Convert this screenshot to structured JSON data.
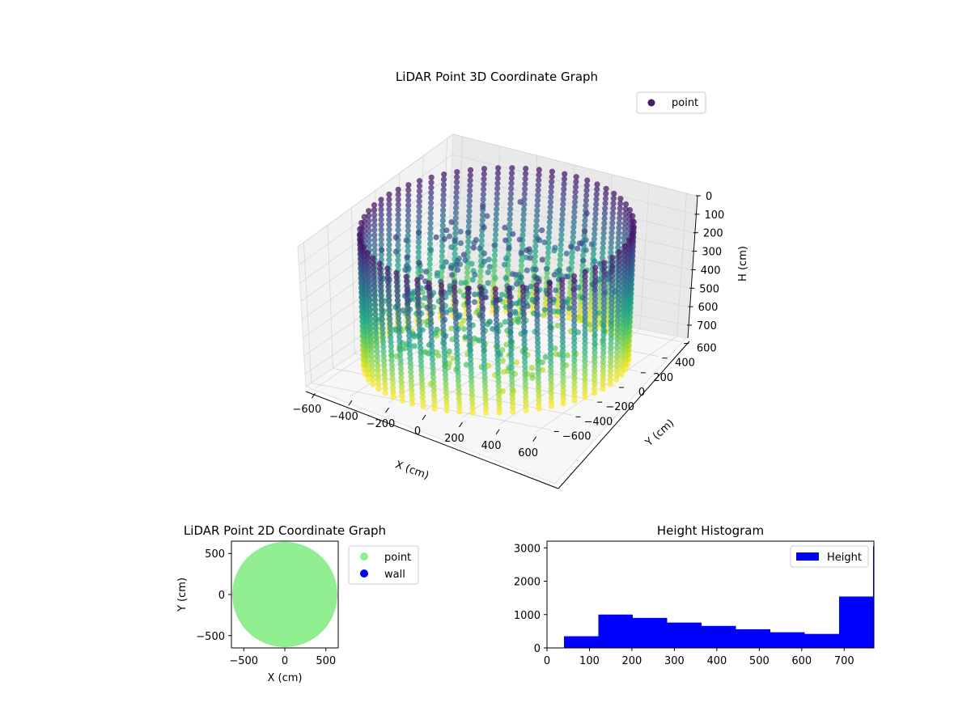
{
  "chart_data": [
    {
      "type": "scatter3d",
      "title": "LiDAR Point 3D Coordinate Graph",
      "xlabel": "X (cm)",
      "ylabel": "Y (cm)",
      "zlabel": "H (cm)",
      "xlim": [
        -650,
        650
      ],
      "ylim": [
        -650,
        650
      ],
      "zlim": [
        0,
        770
      ],
      "z_inverted": true,
      "xticks": [
        "−600",
        "−400",
        "−200",
        "0",
        "200",
        "400",
        "600"
      ],
      "yticks": [
        "−600",
        "−400",
        "−200",
        "0",
        "200",
        "400",
        "600"
      ],
      "zticks": [
        "0",
        "100",
        "200",
        "300",
        "400",
        "500",
        "600",
        "700"
      ],
      "grid": true,
      "colormap": "viridis",
      "legend": {
        "placement": "top-right",
        "entries": [
          {
            "label": "point",
            "color": "#481b6d"
          }
        ]
      },
      "structure": {
        "wall_radius": 620,
        "wall_height": [
          0,
          770
        ],
        "wall_columns": 62
      }
    },
    {
      "type": "scatter",
      "title": "LiDAR Point 2D Coordinate Graph",
      "xlabel": "X (cm)",
      "ylabel": "Y (cm)",
      "xlim": [
        -650,
        650
      ],
      "ylim": [
        -650,
        650
      ],
      "xticks": [
        "−500",
        "0",
        "500"
      ],
      "yticks": [
        "500",
        "0",
        "−500"
      ],
      "series": [
        {
          "name": "point",
          "color": "#90ee90",
          "shape": "disc",
          "radius": 640
        },
        {
          "name": "wall",
          "color": "#0000ff"
        }
      ],
      "legend": {
        "placement": "outside-right"
      }
    },
    {
      "type": "bar",
      "title": "Height Histogram",
      "xlim": [
        0,
        770
      ],
      "ylim": [
        0,
        3200
      ],
      "xticks": [
        "0",
        "100",
        "200",
        "300",
        "400",
        "500",
        "600",
        "700"
      ],
      "yticks": [
        "0",
        "1000",
        "2000",
        "3000"
      ],
      "bin_edges": [
        40,
        121,
        202,
        283,
        364,
        445,
        526,
        607,
        688,
        769
      ],
      "values": [
        350,
        1000,
        900,
        760,
        660,
        560,
        470,
        420,
        1540
      ],
      "edge_spike": {
        "x": 768,
        "value": 3050
      },
      "color": "#0000ff",
      "legend": {
        "placement": "top-right",
        "entries": [
          {
            "label": "Height",
            "color": "#0000ff"
          }
        ]
      }
    }
  ]
}
